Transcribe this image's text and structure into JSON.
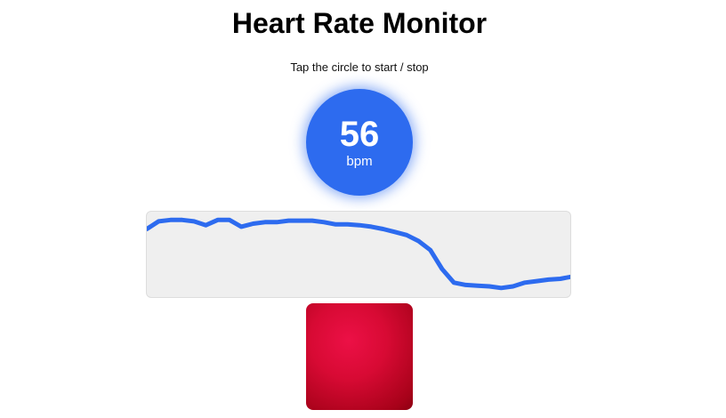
{
  "app": {
    "title": "Heart Rate Monitor",
    "instruction": "Tap the circle to start / stop"
  },
  "reading": {
    "bpm": "56",
    "unit": "bpm"
  },
  "colors": {
    "accent": "#2d6bef",
    "graph_background": "#efefef",
    "camera_preview": "#e0103c"
  },
  "chart_data": {
    "type": "line",
    "title": "",
    "xlabel": "",
    "ylabel": "",
    "grid": false,
    "legend": "none",
    "ylim": [
      0,
      1
    ],
    "series": [
      {
        "values": [
          0.83,
          0.93,
          0.95,
          0.95,
          0.93,
          0.88,
          0.95,
          0.95,
          0.86,
          0.9,
          0.92,
          0.92,
          0.94,
          0.94,
          0.94,
          0.92,
          0.89,
          0.89,
          0.88,
          0.86,
          0.83,
          0.79,
          0.75,
          0.67,
          0.55,
          0.3,
          0.12,
          0.09,
          0.08,
          0.07,
          0.05,
          0.07,
          0.12,
          0.14,
          0.16,
          0.17,
          0.2
        ]
      }
    ]
  }
}
